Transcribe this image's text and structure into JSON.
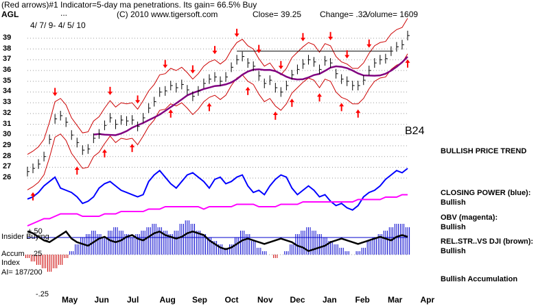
{
  "header": {
    "line1_left": "(Red arrows)#1 Indicator=5-day ma penetrations. Its gain= 66.5% Buy",
    "ticker": "AGL",
    "ellipsis": "...",
    "copyright": "(C) 2010 www.tigersoft.com",
    "close": "Close=  39.25",
    "change": "Change= .32",
    "volume": "Volume= 1609",
    "date_range": "4/ 7/ 9- 4/ 5/ 10"
  },
  "signal_label": "B24",
  "side_labels": {
    "trend": "BULLISH PRICE TREND",
    "cp_title": "CLOSING POWER (blue):",
    "cp_value": "Bullish",
    "obv_title": "OBV (magenta):",
    "obv_value": "Bullish",
    "rs_title": "REL.STR..VS DJI (brown):",
    "rs_value": "Bullish",
    "accum": "Bullish Accumulation"
  },
  "lower_panel": {
    "insider": "Insider Buying",
    "plus50": "+.50",
    "plus25": ".25",
    "accum": "Accum",
    "index": "Index",
    "ai": "AI= 187/200",
    "minus25": "-.25"
  },
  "colors": {
    "price_bars": "#000000",
    "bands": "#cc0000",
    "ma": "#800080",
    "closing_power": "#0000ff",
    "obv": "#ff00ff",
    "rel_str": "#000000",
    "accum_pos": "#0000cc",
    "accum_neg": "#cc0000",
    "arrows": "#ff0000"
  },
  "chart_data": {
    "type": "line",
    "y_ticks": [
      26,
      27,
      28,
      29,
      30,
      31,
      32,
      33,
      34,
      35,
      36,
      37,
      38,
      39
    ],
    "ylim": [
      25.5,
      39.5
    ],
    "x_months": [
      "May",
      "Jun",
      "Jul",
      "Aug",
      "Sep",
      "Oct",
      "Nov",
      "Dec",
      "Jan",
      "Feb",
      "Mar",
      "Apr"
    ],
    "price_close": [
      26.6,
      26.9,
      27.3,
      28.0,
      29.6,
      31.5,
      31.8,
      31.2,
      30.0,
      29.3,
      28.6,
      28.7,
      29.7,
      30.1,
      30.9,
      31.6,
      31.0,
      31.4,
      31.3,
      31.4,
      30.8,
      31.6,
      32.5,
      33.1,
      34.0,
      34.1,
      34.6,
      34.4,
      34.7,
      34.2,
      33.6,
      34.1,
      34.8,
      35.2,
      35.4,
      35.0,
      35.4,
      36.3,
      37.0,
      37.3,
      36.7,
      36.4,
      35.5,
      34.8,
      35.1,
      34.4,
      34.0,
      34.6,
      35.6,
      36.1,
      36.6,
      37.0,
      36.8,
      36.1,
      36.9,
      36.7,
      35.7,
      35.2,
      35.0,
      34.6,
      34.6,
      35.1,
      36.0,
      36.7,
      37.0,
      37.1,
      37.8,
      38.2,
      38.4,
      39.25
    ],
    "cp_index": [
      30,
      30,
      30,
      31,
      31,
      32,
      32,
      33,
      33,
      33,
      33,
      34,
      34,
      34,
      34,
      35,
      35,
      35,
      35,
      36,
      36,
      36,
      36,
      36,
      36,
      36,
      37,
      37,
      37,
      37,
      37,
      36,
      36,
      37,
      38,
      37,
      37,
      37,
      36,
      36,
      36,
      36,
      37,
      37,
      38,
      38,
      38,
      37,
      37,
      36,
      35,
      35,
      35,
      36,
      36,
      36,
      37,
      37,
      37,
      38,
      38,
      38,
      39,
      39,
      39,
      40,
      40,
      40,
      41,
      41
    ],
    "closing_power": [
      32,
      33,
      35,
      38,
      40,
      42,
      37,
      36,
      35,
      33,
      30,
      31,
      33,
      37,
      39,
      40,
      38,
      36,
      35,
      34,
      33,
      34,
      40,
      43,
      45,
      42,
      39,
      37,
      40,
      43,
      44,
      42,
      40,
      37,
      41,
      42,
      39,
      40,
      42,
      43,
      38,
      35,
      36,
      34,
      38,
      41,
      43,
      42,
      37,
      34,
      36,
      38,
      36,
      33,
      34,
      31,
      29,
      30,
      28,
      27,
      29,
      33,
      35,
      36,
      38,
      41,
      43,
      45,
      44,
      46
    ],
    "obv": [
      14,
      15,
      16,
      17,
      17,
      18,
      19,
      19,
      19,
      19,
      18,
      18,
      18,
      18,
      19,
      19,
      19,
      20,
      20,
      20,
      20,
      20,
      21,
      21,
      21,
      22,
      22,
      22,
      22,
      22,
      22,
      22,
      21,
      22,
      22,
      22,
      22,
      22,
      23,
      23,
      23,
      23,
      22,
      22,
      22,
      22,
      23,
      23,
      23,
      23,
      24,
      24,
      24,
      24,
      24,
      24,
      24,
      24,
      24,
      24,
      25,
      25,
      25,
      25,
      25,
      26,
      26,
      26,
      27,
      27
    ],
    "accumulation_index": [
      -0.05,
      -0.1,
      -0.15,
      -0.2,
      -0.25,
      -0.2,
      -0.15,
      -0.05,
      0.05,
      0.15,
      0.25,
      0.3,
      0.35,
      0.3,
      0.25,
      0.35,
      0.4,
      0.35,
      0.3,
      0.25,
      0.3,
      0.35,
      0.4,
      0.45,
      0.4,
      0.35,
      0.3,
      0.35,
      0.45,
      0.5,
      0.45,
      0.35,
      0.3,
      0.25,
      0.2,
      0.15,
      0.1,
      0.15,
      0.25,
      0.35,
      0.3,
      0.2,
      0.1,
      0.05,
      0.0,
      -0.05,
      0.0,
      0.05,
      0.15,
      0.3,
      0.35,
      0.4,
      0.35,
      0.3,
      0.25,
      0.2,
      0.15,
      0.1,
      0.05,
      0.0,
      0.05,
      0.1,
      0.2,
      0.25,
      0.3,
      0.35,
      0.4,
      0.45,
      0.45,
      0.4
    ],
    "rel_str": [
      0.48,
      0.47,
      0.45,
      0.43,
      0.42,
      0.44,
      0.46,
      0.48,
      0.44,
      0.42,
      0.41,
      0.4,
      0.42,
      0.44,
      0.45,
      0.43,
      0.42,
      0.43,
      0.45,
      0.46,
      0.44,
      0.43,
      0.45,
      0.47,
      0.48,
      0.46,
      0.45,
      0.44,
      0.45,
      0.47,
      0.48,
      0.47,
      0.46,
      0.43,
      0.41,
      0.39,
      0.38,
      0.39,
      0.41,
      0.43,
      0.44,
      0.43,
      0.42,
      0.41,
      0.42,
      0.43,
      0.44,
      0.43,
      0.42,
      0.4,
      0.39,
      0.37,
      0.38,
      0.39,
      0.4,
      0.42,
      0.43,
      0.44,
      0.43,
      0.42,
      0.41,
      0.42,
      0.43,
      0.44,
      0.45,
      0.44,
      0.43,
      0.45,
      0.46,
      0.45
    ],
    "red_down_arrows": [
      5,
      15,
      20,
      25,
      30,
      34,
      38,
      42,
      46,
      50,
      55,
      58,
      62
    ],
    "red_up_arrows": [
      1,
      9,
      14,
      19,
      26,
      33,
      40,
      45,
      48,
      53,
      57,
      60,
      69
    ]
  }
}
